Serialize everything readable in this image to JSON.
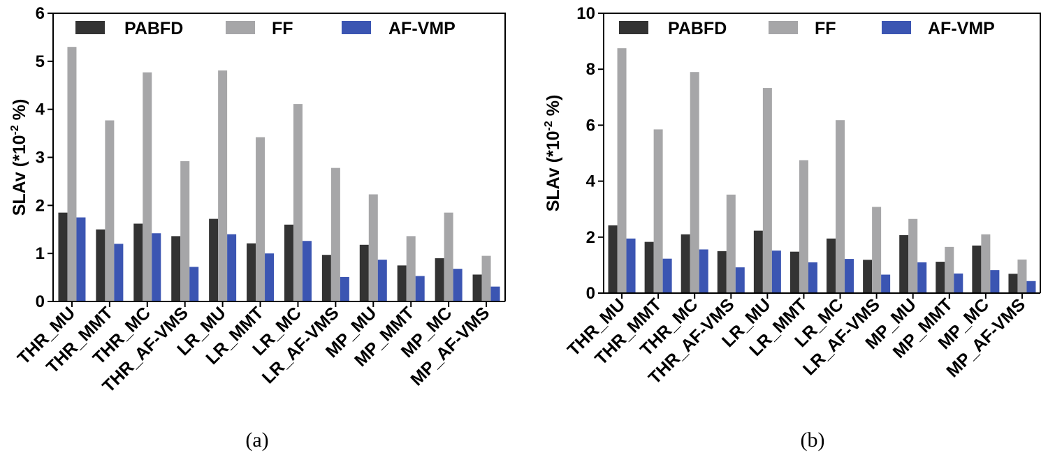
{
  "chart_data": [
    {
      "type": "bar",
      "panel": "(a)",
      "ylabel": "SLAv (*10",
      "ylabel_exp": "-2",
      "ylabel_unit": " %)",
      "ylim": [
        0,
        6
      ],
      "yticks": [
        "0",
        "1",
        "2",
        "3",
        "4",
        "5",
        "6"
      ],
      "categories": [
        "THR_MU",
        "THR_MMT",
        "THR_MC",
        "THR_AF-VMS",
        "LR_MU",
        "LR_MMT",
        "LR_MC",
        "LR_AF-VMS",
        "MP_MU",
        "MP_MMT",
        "MP_MC",
        "MP_AF-VMS"
      ],
      "series": [
        {
          "name": "PABFD",
          "color": "#333333",
          "values": [
            1.85,
            1.5,
            1.62,
            1.36,
            1.72,
            1.21,
            1.6,
            0.97,
            1.18,
            0.75,
            0.9,
            0.56
          ]
        },
        {
          "name": "FF",
          "color": "#a6a6a8",
          "values": [
            5.3,
            3.77,
            4.77,
            2.92,
            4.81,
            3.42,
            4.11,
            2.78,
            2.23,
            1.36,
            1.85,
            0.95
          ]
        },
        {
          "name": "AF-VMP",
          "color": "#3b55b2",
          "values": [
            1.75,
            1.2,
            1.42,
            0.72,
            1.4,
            1.0,
            1.26,
            0.51,
            0.87,
            0.53,
            0.68,
            0.31
          ]
        }
      ]
    },
    {
      "type": "bar",
      "panel": "(b)",
      "ylabel": "SLAv (*10",
      "ylabel_exp": "-2",
      "ylabel_unit": " %)",
      "ylim": [
        0,
        10
      ],
      "yticks": [
        "0",
        "2",
        "4",
        "6",
        "8",
        "10"
      ],
      "categories": [
        "THR_MU",
        "THR_MMT",
        "THR_MC",
        "THR_AF-VMS",
        "LR_MU",
        "LR_MMT",
        "LR_MC",
        "LR_AF-VMS",
        "MP_MU",
        "MP_MMT",
        "MP_MC",
        "MP_AF-VMS"
      ],
      "series": [
        {
          "name": "PABFD",
          "color": "#333333",
          "values": [
            2.42,
            1.83,
            2.1,
            1.5,
            2.23,
            1.48,
            1.95,
            1.19,
            2.07,
            1.12,
            1.7,
            0.69
          ]
        },
        {
          "name": "FF",
          "color": "#a6a6a8",
          "values": [
            8.75,
            5.85,
            7.9,
            3.52,
            7.33,
            4.75,
            6.18,
            3.08,
            2.65,
            1.65,
            2.1,
            1.2
          ]
        },
        {
          "name": "AF-VMP",
          "color": "#3b55b2",
          "values": [
            1.95,
            1.23,
            1.56,
            0.92,
            1.52,
            1.1,
            1.22,
            0.66,
            1.1,
            0.7,
            0.82,
            0.43
          ]
        }
      ]
    }
  ]
}
